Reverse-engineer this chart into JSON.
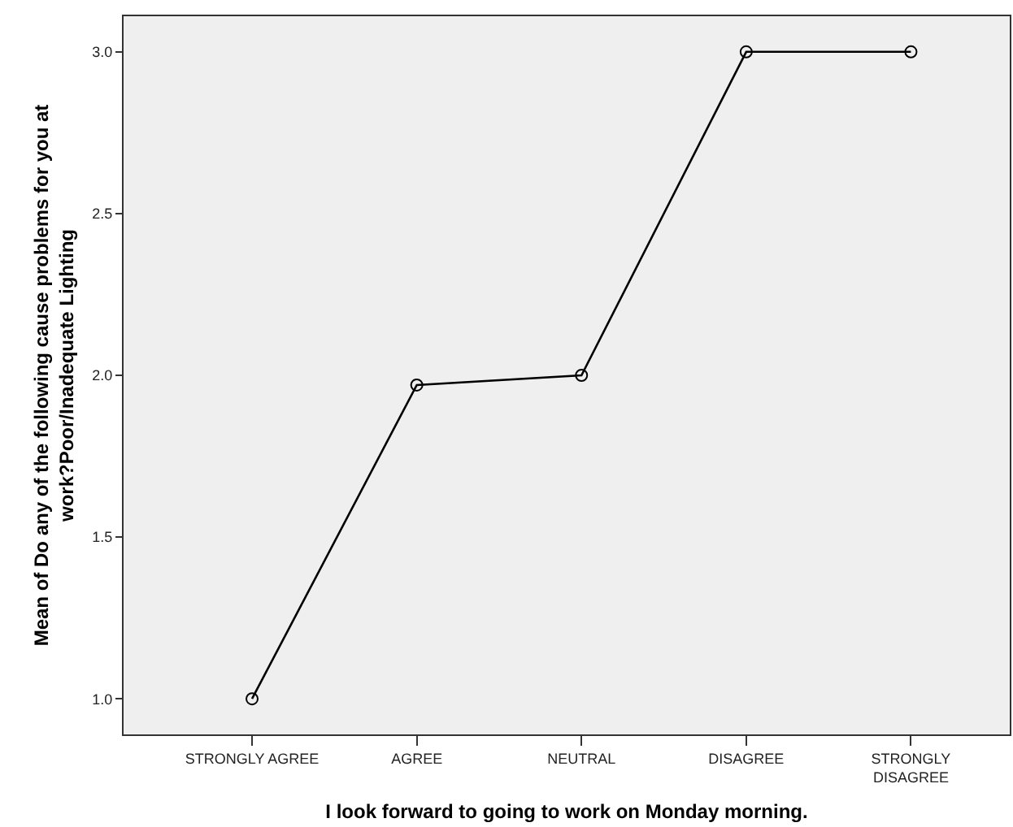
{
  "chart_data": {
    "type": "line",
    "xlabel": "I look forward to going to work on Monday morning.",
    "ylabel": "Mean of Do any of the following cause problems for you at work?Poor/Inadequate Lighting",
    "categories": [
      "STRONGLY AGREE",
      "AGREE",
      "NEUTRAL",
      "DISAGREE",
      "STRONGLY DISAGREE"
    ],
    "series": [
      {
        "color": "#000000",
        "values": [
          1.0,
          1.97,
          2.0,
          3.0,
          3.0
        ]
      }
    ],
    "ylim": [
      0.89,
      3.11
    ],
    "yticks": [
      {
        "value": 1.0,
        "label": "1.0"
      },
      {
        "value": 1.5,
        "label": "1.5"
      },
      {
        "value": 2.0,
        "label": "2.0"
      },
      {
        "value": 2.5,
        "label": "2.5"
      },
      {
        "value": 3.0,
        "label": "3.0"
      }
    ],
    "grid": false,
    "marker": "circle",
    "line_style": "solid"
  }
}
